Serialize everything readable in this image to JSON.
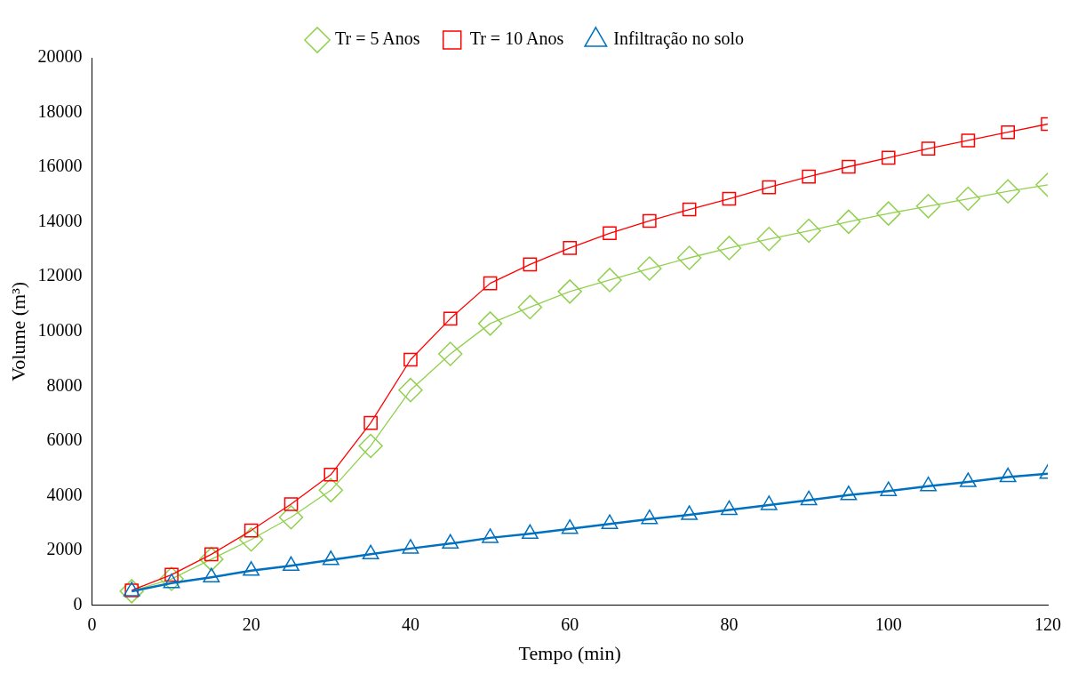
{
  "chart_data": {
    "type": "line",
    "xlabel": "Tempo (min)",
    "ylabel": "Volume (m³)",
    "x": [
      5,
      10,
      15,
      20,
      25,
      30,
      35,
      40,
      45,
      50,
      55,
      60,
      65,
      70,
      75,
      80,
      85,
      90,
      95,
      100,
      105,
      110,
      115,
      120
    ],
    "xlim": [
      0,
      120
    ],
    "xticks": [
      0,
      20,
      40,
      60,
      80,
      100,
      120
    ],
    "ylim": [
      0,
      20000
    ],
    "yticks": [
      0,
      2000,
      4000,
      6000,
      8000,
      10000,
      12000,
      14000,
      16000,
      18000,
      20000
    ],
    "grid": false,
    "legend": "top",
    "series": [
      {
        "name": "Tr = 5 Anos",
        "color": "#92d050",
        "marker": "diamond",
        "values": [
          510,
          960,
          1680,
          2400,
          3210,
          4200,
          5820,
          7860,
          9180,
          10290,
          10890,
          11460,
          11880,
          12300,
          12690,
          13050,
          13380,
          13680,
          14010,
          14310,
          14580,
          14850,
          15120,
          15360
        ]
      },
      {
        "name": "Tr = 10 Anos",
        "color": "#ff0000",
        "marker": "square",
        "values": [
          540,
          1110,
          1860,
          2730,
          3690,
          4770,
          6660,
          8970,
          10470,
          11760,
          12450,
          13050,
          13590,
          14040,
          14460,
          14850,
          15270,
          15660,
          16020,
          16350,
          16680,
          16980,
          17280,
          17580
        ]
      },
      {
        "name": "Infiltração no solo",
        "color": "#0070c0",
        "marker": "triangle",
        "values": [
          510,
          810,
          1020,
          1260,
          1440,
          1650,
          1860,
          2070,
          2250,
          2460,
          2610,
          2790,
          2970,
          3150,
          3300,
          3480,
          3660,
          3840,
          4020,
          4170,
          4350,
          4500,
          4680,
          4800
        ]
      }
    ]
  }
}
